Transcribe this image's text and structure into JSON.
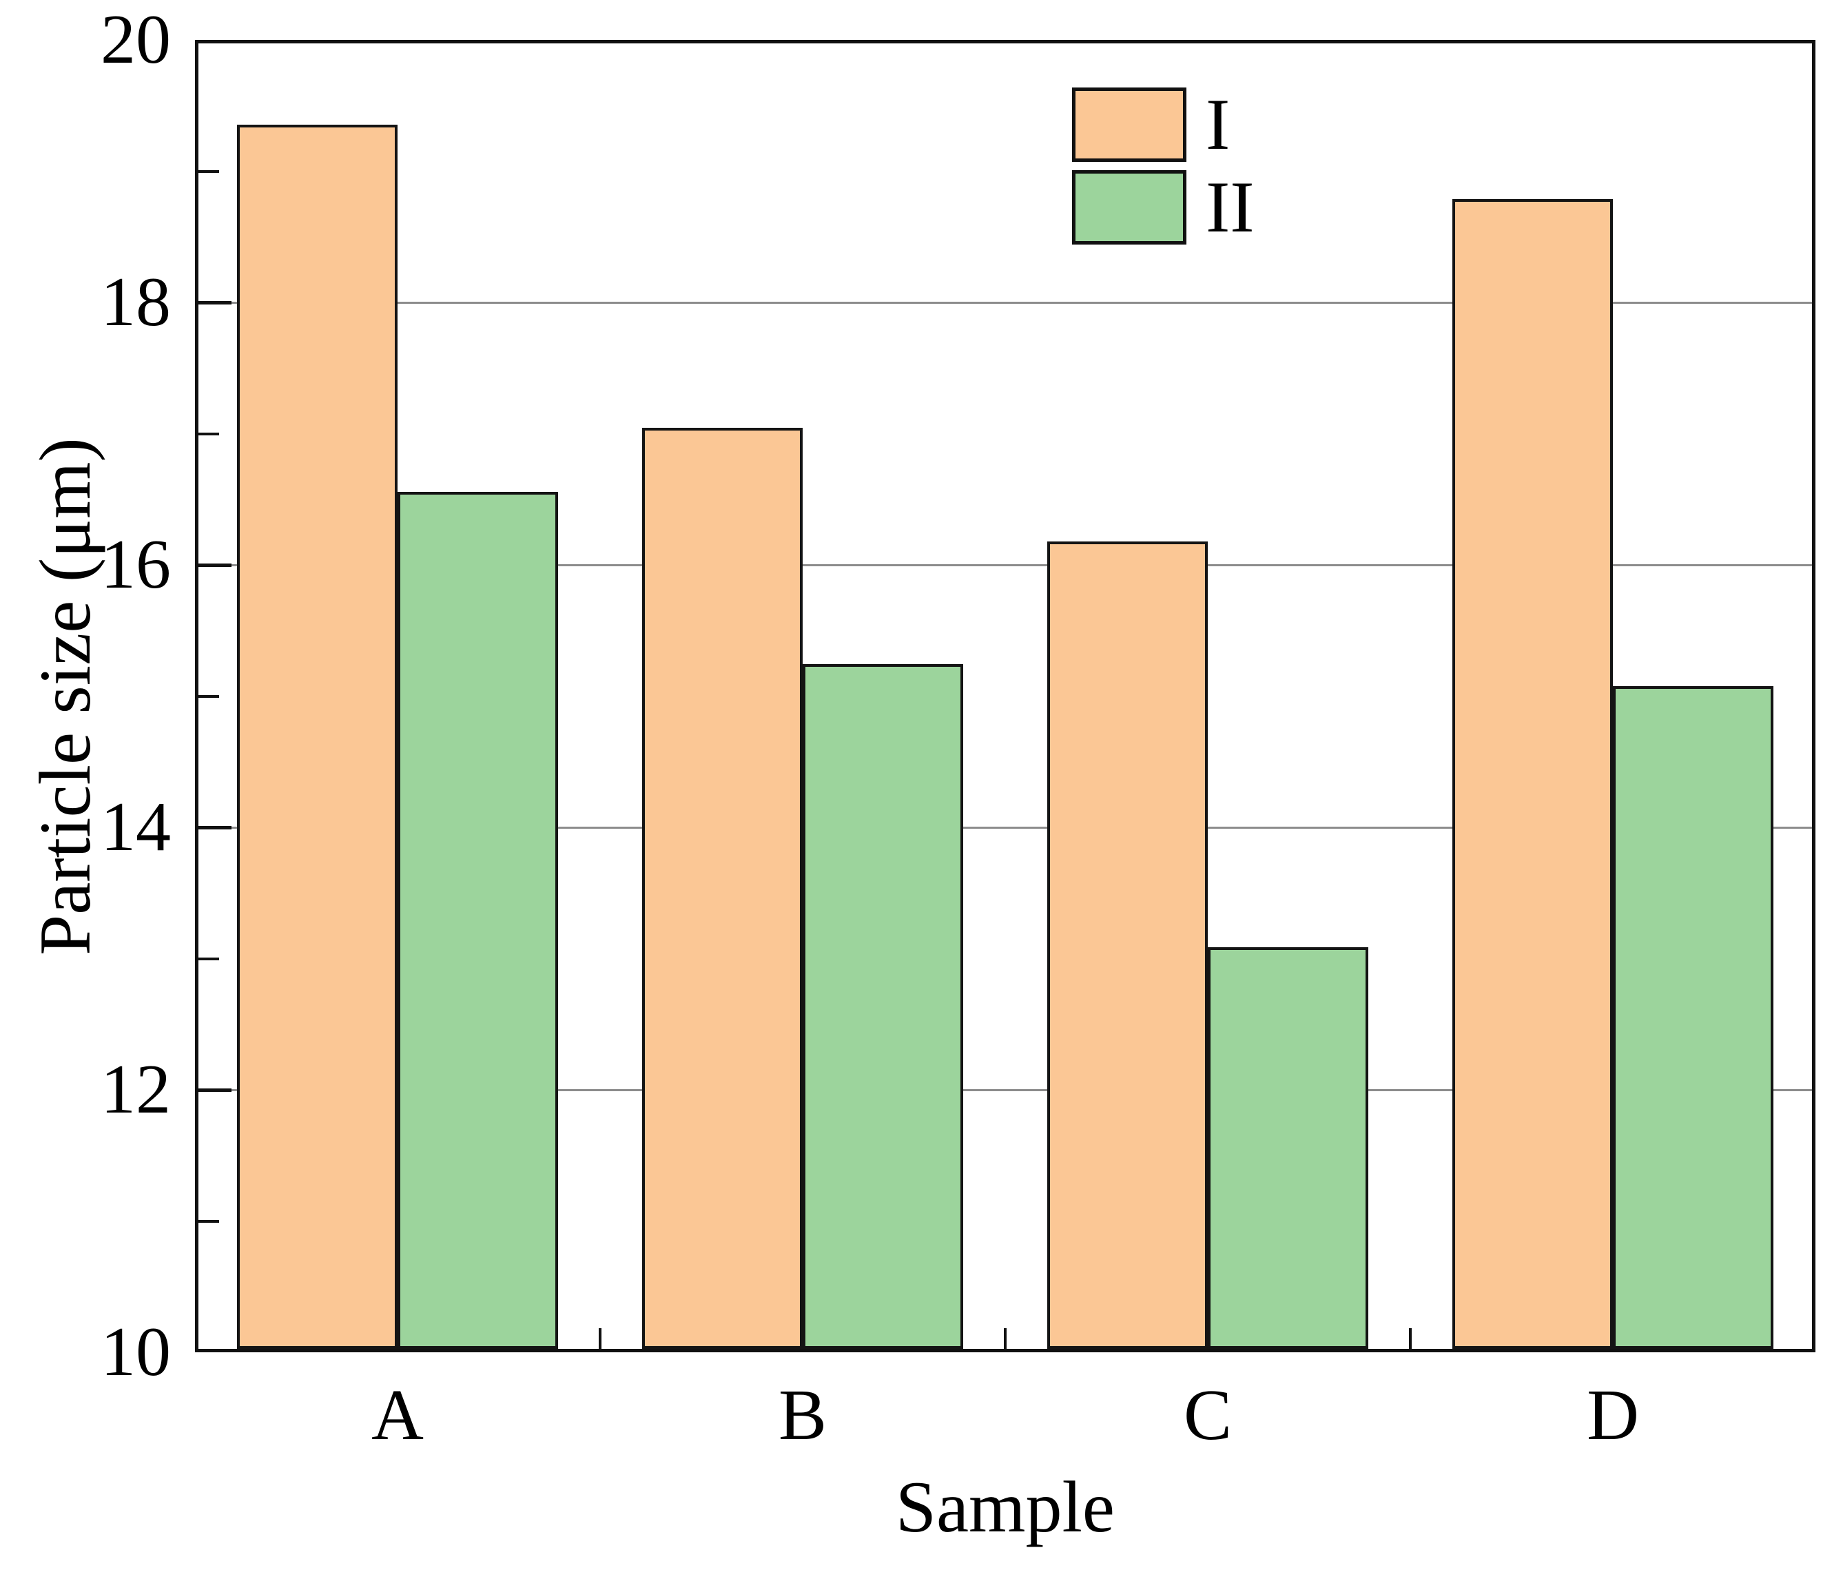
{
  "chart_data": {
    "type": "bar",
    "title": "",
    "categories": [
      "A",
      "B",
      "C",
      "D"
    ],
    "series": [
      {
        "name": "I",
        "color": "#FBC795",
        "values": [
          19.33,
          17.02,
          16.15,
          18.76
        ]
      },
      {
        "name": "II",
        "color": "#9CD49C",
        "values": [
          16.53,
          15.22,
          13.06,
          15.05
        ]
      }
    ],
    "xlabel": "Sample",
    "ylabel": "Particle size (μm)",
    "ylim": [
      10,
      20
    ],
    "yticks": [
      10,
      12,
      14,
      16,
      18,
      20
    ],
    "ytick_labels": [
      "10",
      "12",
      "14",
      "16",
      "18",
      "20"
    ],
    "minor_yticks": [
      11,
      13,
      15,
      17,
      19
    ],
    "grid": "horizontal gridlines at 12, 14, 16, 18",
    "gridline_color": "#8c8c8c",
    "axis_color": "#111111",
    "bar_border_color": "#141414",
    "legend_position": "inside top, right of center",
    "legend_entries": [
      "I",
      "II"
    ]
  }
}
